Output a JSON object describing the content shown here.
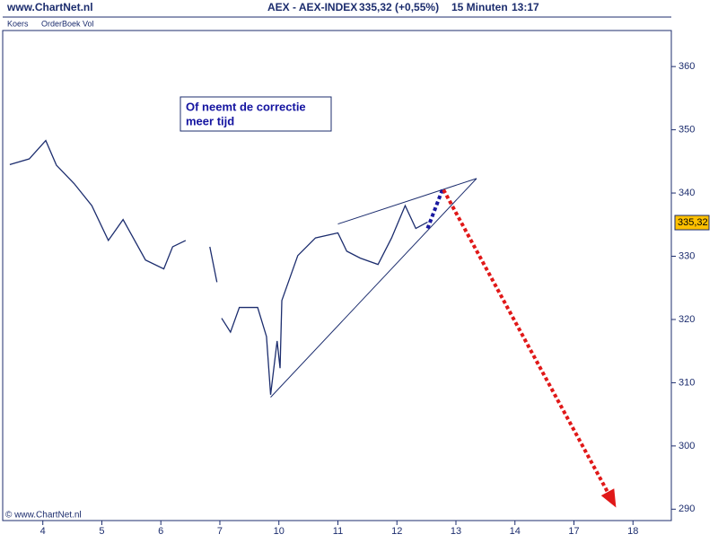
{
  "header": {
    "site": "www.ChartNet.nl",
    "instrument": "AEX - AEX-INDEX",
    "quote": "335,32 (+0,55%)",
    "interval": "15 Minuten",
    "time": "13:17",
    "tabs": [
      "Koers",
      "OrderBoek Vol"
    ]
  },
  "chart_data": {
    "type": "line",
    "x": [
      -0.56,
      -0.23,
      0.05,
      0.23,
      0.53,
      0.83,
      1.11,
      1.36,
      1.74,
      2.05,
      2.2,
      2.42,
      2.6,
      2.83,
      2.95,
      3.0,
      3.03,
      3.18,
      3.33,
      3.64,
      3.79,
      3.86,
      3.97,
      4.02,
      4.05,
      4.32,
      4.62,
      5.0,
      5.15,
      5.38,
      5.68,
      5.91,
      6.14,
      6.32,
      6.52
    ],
    "series": [
      {
        "name": "AEX",
        "color": "#1c2d6e",
        "values": [
          344.5,
          345.4,
          348.3,
          344.4,
          341.5,
          338,
          332.5,
          335.8,
          329.4,
          328,
          331.5,
          332.5,
          null,
          331.5,
          325.9,
          null,
          320.2,
          318,
          321.9,
          321.9,
          317.3,
          308.1,
          316.6,
          312.3,
          323,
          330.1,
          332.9,
          333.7,
          330.8,
          329.7,
          328.7,
          332.9,
          338,
          334.4,
          335.4
        ]
      }
    ],
    "lines": [
      {
        "color": "#1c2d6e",
        "dash": false,
        "x": [
          3.86,
          7.35
        ],
        "y": [
          307.7,
          342.3
        ]
      },
      {
        "color": "#1c2d6e",
        "dash": false,
        "x": [
          5.0,
          7.35
        ],
        "y": [
          335.1,
          342.3
        ]
      },
      {
        "color": "#1a1aa0",
        "dash": true,
        "x": [
          6.52,
          6.77
        ],
        "y": [
          334.4,
          340.5
        ]
      },
      {
        "color": "#e01818",
        "dash": true,
        "x": [
          6.79,
          9.67
        ],
        "y": [
          340.5,
          291.0
        ]
      }
    ],
    "annotation": [
      "Of neemt de correctie",
      "meer tijd"
    ],
    "copyright": "© www.ChartNet.nl",
    "last_price": {
      "value": 335.32,
      "label": "335,32"
    },
    "xlim": [
      -0.68,
      10.65
    ],
    "ylim": [
      288.2,
      365.7
    ],
    "xticks": [
      {
        "value": 0,
        "label": "4"
      },
      {
        "value": 1,
        "label": "5"
      },
      {
        "value": 2,
        "label": "6"
      },
      {
        "value": 3,
        "label": "7"
      },
      {
        "value": 4,
        "label": "10"
      },
      {
        "value": 5,
        "label": "11"
      },
      {
        "value": 6,
        "label": "12"
      },
      {
        "value": 7,
        "label": "13"
      },
      {
        "value": 8,
        "label": "14"
      },
      {
        "value": 9,
        "label": "17"
      },
      {
        "value": 10,
        "label": "18"
      }
    ],
    "yticks": [
      290,
      300,
      310,
      320,
      330,
      340,
      350,
      360
    ]
  }
}
